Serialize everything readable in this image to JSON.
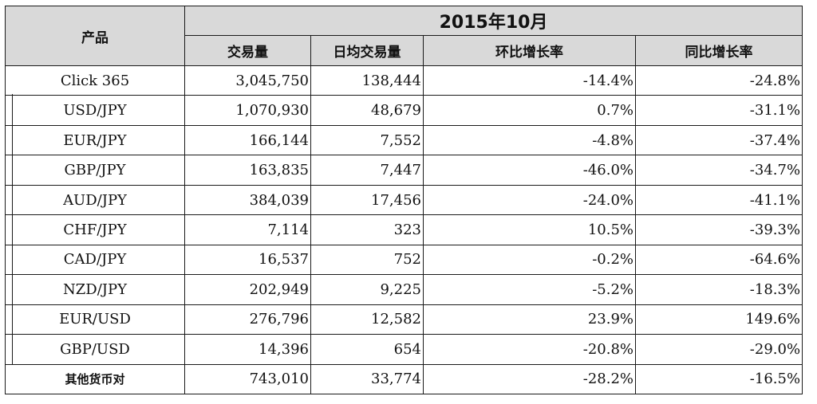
{
  "table": {
    "header": {
      "product_label": "产品",
      "period": "2015年10月",
      "columns": [
        "交易量",
        "日均交易量",
        "环比增长率",
        "同比增长率"
      ]
    },
    "rows": [
      {
        "product": "Click 365",
        "volume": "3,045,750",
        "daily_avg": "138,444",
        "mom": "-14.4%",
        "yoy": "-24.8%"
      },
      {
        "product": "USD/JPY",
        "volume": "1,070,930",
        "daily_avg": "48,679",
        "mom": "0.7%",
        "yoy": "-31.1%"
      },
      {
        "product": "EUR/JPY",
        "volume": "166,144",
        "daily_avg": "7,552",
        "mom": "-4.8%",
        "yoy": "-37.4%"
      },
      {
        "product": "GBP/JPY",
        "volume": "163,835",
        "daily_avg": "7,447",
        "mom": "-46.0%",
        "yoy": "-34.7%"
      },
      {
        "product": "AUD/JPY",
        "volume": "384,039",
        "daily_avg": "17,456",
        "mom": "-24.0%",
        "yoy": "-41.1%"
      },
      {
        "product": "CHF/JPY",
        "volume": "7,114",
        "daily_avg": "323",
        "mom": "10.5%",
        "yoy": "-39.3%"
      },
      {
        "product": "CAD/JPY",
        "volume": "16,537",
        "daily_avg": "752",
        "mom": "-0.2%",
        "yoy": "-64.6%"
      },
      {
        "product": "NZD/JPY",
        "volume": "202,949",
        "daily_avg": "9,225",
        "mom": "-5.2%",
        "yoy": "-18.3%"
      },
      {
        "product": "EUR/USD",
        "volume": "276,796",
        "daily_avg": "12,582",
        "mom": "23.9%",
        "yoy": "149.6%"
      },
      {
        "product": "GBP/USD",
        "volume": "14,396",
        "daily_avg": "654",
        "mom": "-20.8%",
        "yoy": "-29.0%"
      },
      {
        "product": "其他货币对",
        "volume": "743,010",
        "daily_avg": "33,774",
        "mom": "-28.2%",
        "yoy": "-16.5%"
      }
    ]
  }
}
